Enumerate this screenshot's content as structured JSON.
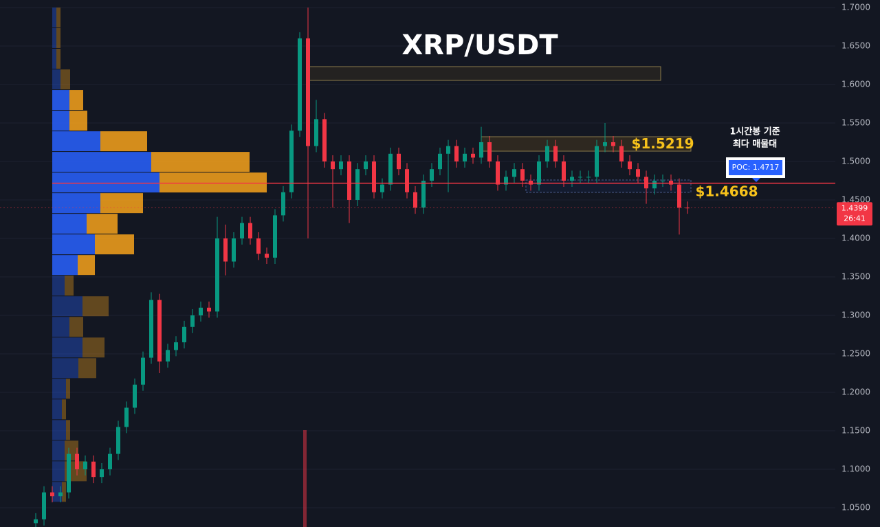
{
  "chart_data": {
    "type": "candlestick",
    "title": "XRP/USDT",
    "ylim": [
      1.025,
      1.7098
    ],
    "yticks": [
      {
        "value": 1.7,
        "label": "1.7000"
      },
      {
        "value": 1.65,
        "label": "1.6500"
      },
      {
        "value": 1.6,
        "label": "1.6000"
      },
      {
        "value": 1.55,
        "label": "1.5500"
      },
      {
        "value": 1.5,
        "label": "1.5000"
      },
      {
        "value": 1.45,
        "label": "1.4500"
      },
      {
        "value": 1.4,
        "label": "1.4000"
      },
      {
        "value": 1.35,
        "label": "1.3500"
      },
      {
        "value": 1.3,
        "label": "1.3000"
      },
      {
        "value": 1.25,
        "label": "1.2500"
      },
      {
        "value": 1.2,
        "label": "1.2000"
      },
      {
        "value": 1.15,
        "label": "1.1500"
      },
      {
        "value": 1.1,
        "label": "1.1000"
      },
      {
        "value": 1.05,
        "label": "1.0500"
      }
    ],
    "grid": true,
    "up_color": "#089981",
    "down_color": "#f23645",
    "candles": [
      [
        1.03,
        1.043,
        1.022,
        1.035
      ],
      [
        1.035,
        1.078,
        1.027,
        1.07
      ],
      [
        1.07,
        1.078,
        1.057,
        1.065
      ],
      [
        1.065,
        1.078,
        1.057,
        1.07
      ],
      [
        1.07,
        1.128,
        1.062,
        1.12
      ],
      [
        1.12,
        1.128,
        1.092,
        1.1
      ],
      [
        1.1,
        1.118,
        1.092,
        1.11
      ],
      [
        1.11,
        1.118,
        1.082,
        1.09
      ],
      [
        1.09,
        1.108,
        1.082,
        1.1
      ],
      [
        1.1,
        1.128,
        1.092,
        1.12
      ],
      [
        1.12,
        1.163,
        1.112,
        1.155
      ],
      [
        1.155,
        1.188,
        1.147,
        1.18
      ],
      [
        1.18,
        1.218,
        1.172,
        1.21
      ],
      [
        1.21,
        1.253,
        1.202,
        1.245
      ],
      [
        1.245,
        1.33,
        1.237,
        1.32
      ],
      [
        1.32,
        1.328,
        1.225,
        1.24
      ],
      [
        1.24,
        1.263,
        1.232,
        1.255
      ],
      [
        1.255,
        1.273,
        1.247,
        1.265
      ],
      [
        1.265,
        1.293,
        1.257,
        1.285
      ],
      [
        1.285,
        1.308,
        1.277,
        1.3
      ],
      [
        1.3,
        1.318,
        1.292,
        1.31
      ],
      [
        1.31,
        1.318,
        1.297,
        1.305
      ],
      [
        1.305,
        1.428,
        1.297,
        1.4
      ],
      [
        1.4,
        1.418,
        1.352,
        1.37
      ],
      [
        1.37,
        1.408,
        1.362,
        1.4
      ],
      [
        1.4,
        1.428,
        1.392,
        1.42
      ],
      [
        1.42,
        1.428,
        1.392,
        1.4
      ],
      [
        1.4,
        1.408,
        1.372,
        1.38
      ],
      [
        1.38,
        1.388,
        1.367,
        1.375
      ],
      [
        1.375,
        1.438,
        1.367,
        1.43
      ],
      [
        1.43,
        1.468,
        1.422,
        1.46
      ],
      [
        1.46,
        1.548,
        1.452,
        1.54
      ],
      [
        1.54,
        1.668,
        1.532,
        1.66
      ],
      [
        1.66,
        1.7,
        1.4,
        1.52
      ],
      [
        1.52,
        1.58,
        1.512,
        1.555
      ],
      [
        1.555,
        1.563,
        1.492,
        1.5
      ],
      [
        1.5,
        1.508,
        1.44,
        1.49
      ],
      [
        1.49,
        1.508,
        1.482,
        1.5
      ],
      [
        1.5,
        1.508,
        1.42,
        1.45
      ],
      [
        1.45,
        1.498,
        1.442,
        1.49
      ],
      [
        1.49,
        1.508,
        1.482,
        1.5
      ],
      [
        1.5,
        1.508,
        1.452,
        1.46
      ],
      [
        1.46,
        1.478,
        1.452,
        1.47
      ],
      [
        1.47,
        1.518,
        1.462,
        1.51
      ],
      [
        1.51,
        1.518,
        1.482,
        1.49
      ],
      [
        1.49,
        1.498,
        1.452,
        1.46
      ],
      [
        1.46,
        1.468,
        1.432,
        1.44
      ],
      [
        1.44,
        1.483,
        1.432,
        1.475
      ],
      [
        1.475,
        1.498,
        1.467,
        1.49
      ],
      [
        1.49,
        1.518,
        1.482,
        1.51
      ],
      [
        1.51,
        1.528,
        1.46,
        1.52
      ],
      [
        1.52,
        1.528,
        1.492,
        1.5
      ],
      [
        1.5,
        1.518,
        1.492,
        1.51
      ],
      [
        1.51,
        1.518,
        1.497,
        1.505
      ],
      [
        1.505,
        1.545,
        1.497,
        1.525
      ],
      [
        1.525,
        1.533,
        1.492,
        1.5
      ],
      [
        1.5,
        1.508,
        1.462,
        1.47
      ],
      [
        1.47,
        1.488,
        1.462,
        1.48
      ],
      [
        1.48,
        1.498,
        1.472,
        1.49
      ],
      [
        1.49,
        1.498,
        1.467,
        1.475
      ],
      [
        1.475,
        1.483,
        1.462,
        1.47
      ],
      [
        1.47,
        1.508,
        1.462,
        1.5
      ],
      [
        1.5,
        1.528,
        1.492,
        1.52
      ],
      [
        1.52,
        1.528,
        1.492,
        1.5
      ],
      [
        1.5,
        1.508,
        1.467,
        1.475
      ],
      [
        1.475,
        1.488,
        1.467,
        1.48
      ],
      [
        1.48,
        1.488,
        1.472,
        1.48
      ],
      [
        1.48,
        1.488,
        1.472,
        1.48
      ],
      [
        1.48,
        1.528,
        1.472,
        1.52
      ],
      [
        1.52,
        1.55,
        1.512,
        1.525
      ],
      [
        1.525,
        1.533,
        1.512,
        1.52
      ],
      [
        1.52,
        1.528,
        1.492,
        1.5
      ],
      [
        1.5,
        1.508,
        1.482,
        1.49
      ],
      [
        1.49,
        1.498,
        1.472,
        1.48
      ],
      [
        1.48,
        1.488,
        1.445,
        1.465
      ],
      [
        1.465,
        1.483,
        1.457,
        1.475
      ],
      [
        1.475,
        1.483,
        1.467,
        1.475
      ],
      [
        1.475,
        1.483,
        1.462,
        1.47
      ],
      [
        1.47,
        1.478,
        1.405,
        1.44
      ],
      [
        1.44,
        1.448,
        1.432,
        1.4399
      ]
    ],
    "profile": {
      "bins": [
        1.7,
        1.6732,
        1.6464,
        1.6196,
        1.5928,
        1.566,
        1.5392,
        1.5124,
        1.4856,
        1.4588,
        1.432,
        1.4052,
        1.3784,
        1.3516,
        1.3248,
        1.298,
        1.2712,
        1.2444,
        1.2176,
        1.1908,
        1.164,
        1.1372,
        1.1104,
        1.0836,
        1.0568
      ],
      "xlim": [
        0,
        320
      ],
      "value_area": [
        1.3516,
        1.5928
      ],
      "series": [
        {
          "name": "buy",
          "color": "#2962ff",
          "values": [
            6,
            6,
            6,
            12,
            25,
            25,
            70,
            144,
            156,
            70,
            50,
            62,
            37,
            18,
            44,
            25,
            44,
            38,
            20,
            14,
            20,
            18,
            18,
            14
          ]
        },
        {
          "name": "sell",
          "color": "#f7a21b",
          "values": [
            6,
            6,
            6,
            14,
            20,
            26,
            68,
            143,
            156,
            62,
            45,
            57,
            25,
            13,
            38,
            20,
            32,
            26,
            6,
            6,
            6,
            20,
            32,
            6
          ]
        }
      ]
    },
    "poc": {
      "value": 1.4717,
      "label": "POC: 1.4717"
    },
    "poc_note": [
      "1시간봉 기준",
      "최다 매물대"
    ],
    "annotations": [
      {
        "value": 1.5219,
        "label": "$1.5219"
      },
      {
        "value": 1.4668,
        "label": "$1.4668"
      }
    ],
    "last_price": 1.4399,
    "countdown": "26:41"
  }
}
